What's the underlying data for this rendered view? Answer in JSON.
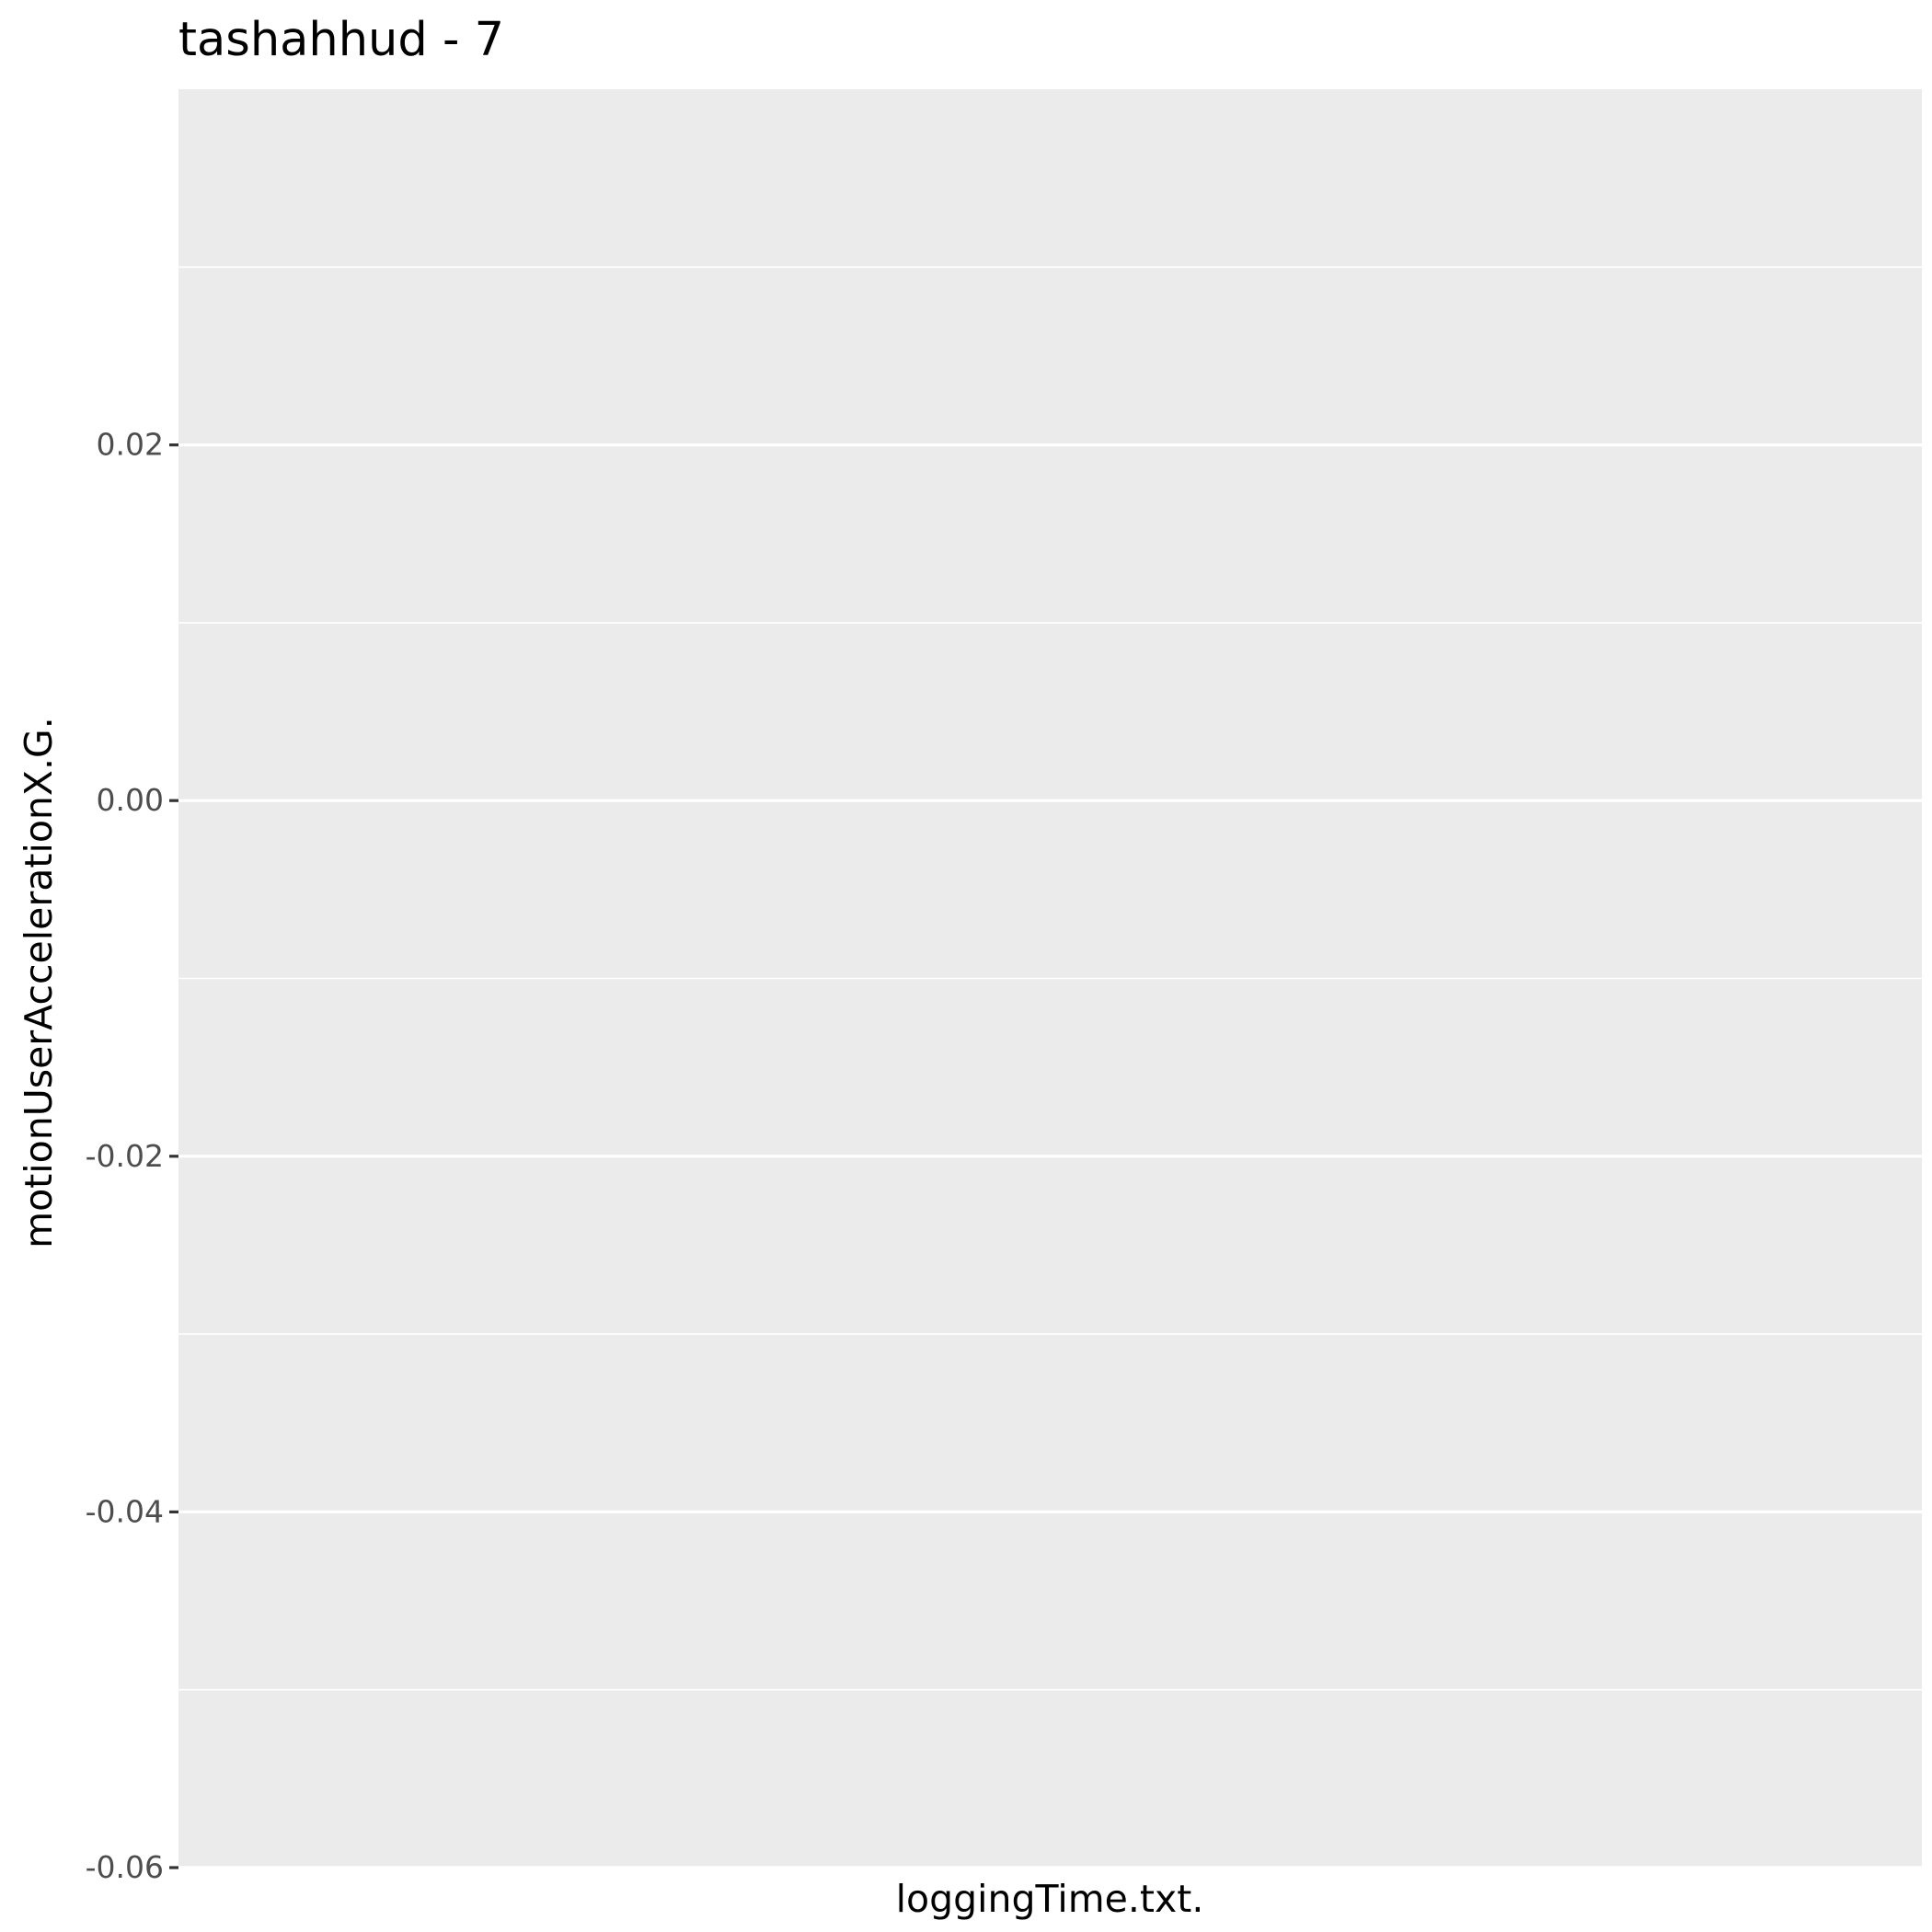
{
  "chart_data": {
    "type": "line",
    "title": "tashahhud  -  7",
    "xlabel": "loggingTime.txt.",
    "ylabel": "motionUserAccelerationX.G.",
    "ylim": [
      -0.06,
      0.04
    ],
    "y_ticks": [
      {
        "value": 0.02,
        "label": "0.02"
      },
      {
        "value": 0.0,
        "label": "0.00"
      },
      {
        "value": -0.02,
        "label": "-0.02"
      },
      {
        "value": -0.04,
        "label": "-0.04"
      },
      {
        "value": -0.06,
        "label": "-0.06"
      }
    ],
    "y_minor_ticks": [
      0.03,
      0.01,
      -0.01,
      -0.03,
      -0.05
    ],
    "x_ticks": [],
    "series": [],
    "grid": true,
    "colors": {
      "panel_background": "#EBEBEB",
      "grid_major": "#FFFFFF",
      "grid_minor": "#FFFFFF",
      "tick_text": "#4D4D4D",
      "tick_mark": "#333333",
      "title_text": "#000000"
    }
  }
}
